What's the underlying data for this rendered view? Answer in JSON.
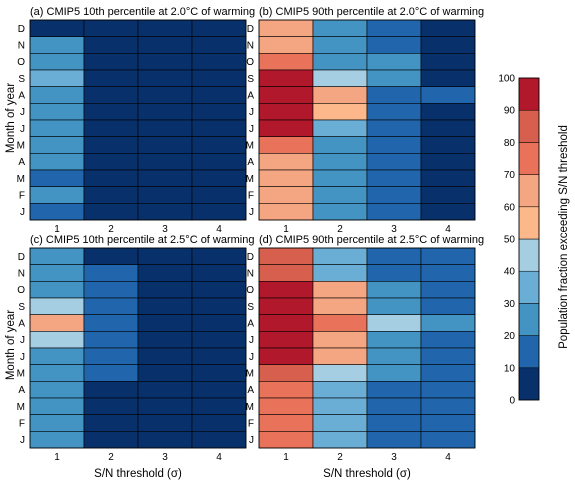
{
  "chart_data": {
    "type": "heatmap",
    "ylabel": "Month of year",
    "xlabel": "S/N threshold (σ)",
    "x_categories": [
      "1",
      "2",
      "3",
      "4"
    ],
    "months_top_to_bottom": [
      "D",
      "N",
      "O",
      "S",
      "A",
      "J",
      "J",
      "M",
      "A",
      "M",
      "F",
      "J"
    ],
    "colorbar": {
      "label": "Population fraction exceeding S/N threshold",
      "ticks": [
        0,
        10,
        20,
        30,
        40,
        50,
        60,
        70,
        80,
        90,
        100
      ],
      "range": [
        0,
        100
      ],
      "colors": [
        "#08306b",
        "#2166ac",
        "#4393c3",
        "#6aaed6",
        "#a6cee3",
        "#fcb88a",
        "#f4a582",
        "#e8735a",
        "#d6604d",
        "#b2182b",
        "#67001f"
      ]
    },
    "panels": [
      {
        "title": "(a) CMIP5 10th percentile at 2.0°C of warming",
        "values": [
          [
            5,
            5,
            5,
            5
          ],
          [
            25,
            5,
            5,
            5
          ],
          [
            25,
            5,
            5,
            5
          ],
          [
            35,
            5,
            5,
            5
          ],
          [
            25,
            5,
            5,
            5
          ],
          [
            25,
            5,
            5,
            5
          ],
          [
            25,
            5,
            5,
            5
          ],
          [
            25,
            5,
            5,
            5
          ],
          [
            25,
            5,
            5,
            5
          ],
          [
            15,
            5,
            5,
            5
          ],
          [
            25,
            5,
            5,
            5
          ],
          [
            15,
            5,
            5,
            5
          ]
        ]
      },
      {
        "title": "(b) CMIP5 90th percentile at 2.0°C of warming",
        "values": [
          [
            65,
            25,
            15,
            5
          ],
          [
            65,
            25,
            15,
            5
          ],
          [
            75,
            25,
            25,
            5
          ],
          [
            95,
            45,
            25,
            5
          ],
          [
            95,
            65,
            15,
            15
          ],
          [
            95,
            55,
            15,
            5
          ],
          [
            95,
            35,
            15,
            5
          ],
          [
            75,
            25,
            15,
            5
          ],
          [
            65,
            25,
            15,
            5
          ],
          [
            65,
            25,
            15,
            5
          ],
          [
            65,
            25,
            15,
            5
          ],
          [
            65,
            25,
            15,
            5
          ]
        ]
      },
      {
        "title": "(c) CMIP5 10th percentile at 2.5°C of warming",
        "values": [
          [
            25,
            5,
            5,
            5
          ],
          [
            25,
            15,
            5,
            5
          ],
          [
            25,
            15,
            5,
            5
          ],
          [
            45,
            15,
            5,
            5
          ],
          [
            65,
            15,
            5,
            5
          ],
          [
            45,
            15,
            5,
            5
          ],
          [
            25,
            15,
            5,
            5
          ],
          [
            25,
            15,
            5,
            5
          ],
          [
            25,
            5,
            5,
            5
          ],
          [
            25,
            5,
            5,
            5
          ],
          [
            25,
            5,
            5,
            5
          ],
          [
            25,
            5,
            5,
            5
          ]
        ]
      },
      {
        "title": "(d) CMIP5 90th percentile at 2.5°C of warming",
        "values": [
          [
            85,
            35,
            15,
            15
          ],
          [
            85,
            35,
            15,
            15
          ],
          [
            95,
            65,
            25,
            15
          ],
          [
            95,
            65,
            25,
            15
          ],
          [
            95,
            75,
            45,
            25
          ],
          [
            95,
            65,
            25,
            15
          ],
          [
            95,
            65,
            25,
            15
          ],
          [
            85,
            45,
            25,
            15
          ],
          [
            75,
            35,
            15,
            15
          ],
          [
            75,
            35,
            15,
            15
          ],
          [
            75,
            35,
            15,
            15
          ],
          [
            75,
            35,
            15,
            15
          ]
        ]
      }
    ]
  }
}
